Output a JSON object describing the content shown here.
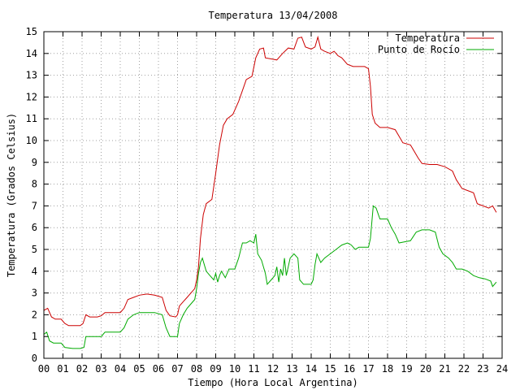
{
  "chart_data": {
    "type": "line",
    "title": "Temperatura 13/04/2008",
    "xlabel": "Tiempo (Hora Local Argentina)",
    "ylabel": "Temperatura (Grados Celsius)",
    "xlim": [
      0,
      24
    ],
    "ylim": [
      0,
      15
    ],
    "grid": true,
    "legend_position": "top-right",
    "x_ticks": [
      {
        "value": 0,
        "label": "00"
      },
      {
        "value": 1,
        "label": "01"
      },
      {
        "value": 2,
        "label": "02"
      },
      {
        "value": 3,
        "label": "03"
      },
      {
        "value": 4,
        "label": "04"
      },
      {
        "value": 5,
        "label": "05"
      },
      {
        "value": 6,
        "label": "06"
      },
      {
        "value": 7,
        "label": "07"
      },
      {
        "value": 8,
        "label": "08"
      },
      {
        "value": 9,
        "label": "09"
      },
      {
        "value": 10,
        "label": "10"
      },
      {
        "value": 11,
        "label": "11"
      },
      {
        "value": 12,
        "label": "12"
      },
      {
        "value": 13,
        "label": "13"
      },
      {
        "value": 14,
        "label": "14"
      },
      {
        "value": 15,
        "label": "15"
      },
      {
        "value": 16,
        "label": "16"
      },
      {
        "value": 17,
        "label": "17"
      },
      {
        "value": 18,
        "label": "18"
      },
      {
        "value": 19,
        "label": "19"
      },
      {
        "value": 20,
        "label": "20"
      },
      {
        "value": 21,
        "label": "21"
      },
      {
        "value": 22,
        "label": "22"
      },
      {
        "value": 23,
        "label": "23"
      },
      {
        "value": 24,
        "label": "24"
      }
    ],
    "y_ticks": [
      {
        "value": 0,
        "label": "0"
      },
      {
        "value": 1,
        "label": "1"
      },
      {
        "value": 2,
        "label": "2"
      },
      {
        "value": 3,
        "label": "3"
      },
      {
        "value": 4,
        "label": "4"
      },
      {
        "value": 5,
        "label": "5"
      },
      {
        "value": 6,
        "label": "6"
      },
      {
        "value": 7,
        "label": "7"
      },
      {
        "value": 8,
        "label": "8"
      },
      {
        "value": 9,
        "label": "9"
      },
      {
        "value": 10,
        "label": "10"
      },
      {
        "value": 11,
        "label": "11"
      },
      {
        "value": 12,
        "label": "12"
      },
      {
        "value": 13,
        "label": "13"
      },
      {
        "value": 14,
        "label": "14"
      },
      {
        "value": 15,
        "label": "15"
      }
    ],
    "series": [
      {
        "name": "Temperatura",
        "color": "#cc0000",
        "points": [
          [
            0.0,
            2.2
          ],
          [
            0.2,
            2.3
          ],
          [
            0.4,
            1.9
          ],
          [
            0.6,
            1.8
          ],
          [
            0.9,
            1.8
          ],
          [
            1.1,
            1.6
          ],
          [
            1.3,
            1.5
          ],
          [
            1.6,
            1.5
          ],
          [
            1.9,
            1.5
          ],
          [
            2.05,
            1.6
          ],
          [
            2.2,
            2.0
          ],
          [
            2.4,
            1.9
          ],
          [
            2.8,
            1.9
          ],
          [
            3.0,
            1.95
          ],
          [
            3.2,
            2.1
          ],
          [
            3.6,
            2.1
          ],
          [
            4.0,
            2.1
          ],
          [
            4.2,
            2.3
          ],
          [
            4.4,
            2.7
          ],
          [
            4.7,
            2.8
          ],
          [
            5.0,
            2.9
          ],
          [
            5.4,
            2.95
          ],
          [
            5.8,
            2.9
          ],
          [
            6.2,
            2.8
          ],
          [
            6.4,
            2.2
          ],
          [
            6.6,
            1.95
          ],
          [
            6.9,
            1.9
          ],
          [
            7.0,
            2.0
          ],
          [
            7.1,
            2.4
          ],
          [
            7.3,
            2.6
          ],
          [
            7.5,
            2.8
          ],
          [
            7.7,
            3.0
          ],
          [
            7.9,
            3.2
          ],
          [
            8.0,
            3.6
          ],
          [
            8.1,
            4.2
          ],
          [
            8.2,
            5.5
          ],
          [
            8.35,
            6.6
          ],
          [
            8.5,
            7.1
          ],
          [
            8.8,
            7.3
          ],
          [
            9.0,
            8.5
          ],
          [
            9.2,
            9.8
          ],
          [
            9.4,
            10.7
          ],
          [
            9.6,
            11.0
          ],
          [
            9.9,
            11.2
          ],
          [
            10.2,
            11.8
          ],
          [
            10.4,
            12.3
          ],
          [
            10.6,
            12.8
          ],
          [
            10.9,
            12.95
          ],
          [
            11.1,
            13.8
          ],
          [
            11.3,
            14.2
          ],
          [
            11.5,
            14.25
          ],
          [
            11.6,
            13.8
          ],
          [
            11.9,
            13.75
          ],
          [
            12.2,
            13.7
          ],
          [
            12.5,
            14.0
          ],
          [
            12.8,
            14.25
          ],
          [
            13.1,
            14.2
          ],
          [
            13.3,
            14.7
          ],
          [
            13.5,
            14.75
          ],
          [
            13.7,
            14.3
          ],
          [
            14.0,
            14.2
          ],
          [
            14.2,
            14.3
          ],
          [
            14.35,
            14.75
          ],
          [
            14.5,
            14.2
          ],
          [
            14.7,
            14.1
          ],
          [
            15.0,
            14.0
          ],
          [
            15.2,
            14.1
          ],
          [
            15.4,
            13.9
          ],
          [
            15.6,
            13.8
          ],
          [
            15.9,
            13.5
          ],
          [
            16.2,
            13.4
          ],
          [
            16.5,
            13.4
          ],
          [
            16.8,
            13.4
          ],
          [
            17.0,
            13.3
          ],
          [
            17.1,
            12.5
          ],
          [
            17.2,
            11.2
          ],
          [
            17.35,
            10.8
          ],
          [
            17.6,
            10.6
          ],
          [
            18.0,
            10.6
          ],
          [
            18.4,
            10.5
          ],
          [
            18.6,
            10.2
          ],
          [
            18.8,
            9.9
          ],
          [
            19.2,
            9.8
          ],
          [
            19.6,
            9.2
          ],
          [
            19.8,
            8.95
          ],
          [
            20.2,
            8.9
          ],
          [
            20.6,
            8.9
          ],
          [
            21.0,
            8.8
          ],
          [
            21.4,
            8.6
          ],
          [
            21.6,
            8.2
          ],
          [
            21.9,
            7.8
          ],
          [
            22.2,
            7.7
          ],
          [
            22.5,
            7.6
          ],
          [
            22.7,
            7.1
          ],
          [
            23.0,
            7.0
          ],
          [
            23.3,
            6.9
          ],
          [
            23.5,
            7.0
          ],
          [
            23.7,
            6.7
          ]
        ]
      },
      {
        "name": "Punto de Rocío",
        "color": "#00aa00",
        "points": [
          [
            0.0,
            1.1
          ],
          [
            0.15,
            1.2
          ],
          [
            0.3,
            0.8
          ],
          [
            0.5,
            0.7
          ],
          [
            0.9,
            0.7
          ],
          [
            1.1,
            0.5
          ],
          [
            1.5,
            0.45
          ],
          [
            1.9,
            0.45
          ],
          [
            2.1,
            0.5
          ],
          [
            2.2,
            1.0
          ],
          [
            2.6,
            1.0
          ],
          [
            3.0,
            1.0
          ],
          [
            3.2,
            1.2
          ],
          [
            3.6,
            1.2
          ],
          [
            4.0,
            1.2
          ],
          [
            4.2,
            1.4
          ],
          [
            4.4,
            1.8
          ],
          [
            4.7,
            2.0
          ],
          [
            5.0,
            2.1
          ],
          [
            5.4,
            2.1
          ],
          [
            5.8,
            2.1
          ],
          [
            6.2,
            2.0
          ],
          [
            6.4,
            1.4
          ],
          [
            6.6,
            1.0
          ],
          [
            7.0,
            1.0
          ],
          [
            7.1,
            1.6
          ],
          [
            7.3,
            2.0
          ],
          [
            7.5,
            2.3
          ],
          [
            7.7,
            2.5
          ],
          [
            7.9,
            2.7
          ],
          [
            8.0,
            3.2
          ],
          [
            8.1,
            3.9
          ],
          [
            8.2,
            4.4
          ],
          [
            8.3,
            4.6
          ],
          [
            8.5,
            4.0
          ],
          [
            8.7,
            3.8
          ],
          [
            8.9,
            3.6
          ],
          [
            9.0,
            3.9
          ],
          [
            9.1,
            3.5
          ],
          [
            9.2,
            3.8
          ],
          [
            9.3,
            4.0
          ],
          [
            9.5,
            3.7
          ],
          [
            9.7,
            4.1
          ],
          [
            10.0,
            4.1
          ],
          [
            10.2,
            4.6
          ],
          [
            10.4,
            5.3
          ],
          [
            10.6,
            5.3
          ],
          [
            10.8,
            5.4
          ],
          [
            11.0,
            5.3
          ],
          [
            11.1,
            5.7
          ],
          [
            11.2,
            4.8
          ],
          [
            11.4,
            4.5
          ],
          [
            11.6,
            3.9
          ],
          [
            11.7,
            3.4
          ],
          [
            11.9,
            3.6
          ],
          [
            12.1,
            3.8
          ],
          [
            12.2,
            4.2
          ],
          [
            12.3,
            3.5
          ],
          [
            12.4,
            4.1
          ],
          [
            12.5,
            3.8
          ],
          [
            12.6,
            4.6
          ],
          [
            12.7,
            3.8
          ],
          [
            12.9,
            4.6
          ],
          [
            13.1,
            4.8
          ],
          [
            13.3,
            4.6
          ],
          [
            13.4,
            3.6
          ],
          [
            13.6,
            3.4
          ],
          [
            13.8,
            3.4
          ],
          [
            14.0,
            3.4
          ],
          [
            14.1,
            3.6
          ],
          [
            14.2,
            4.3
          ],
          [
            14.3,
            4.8
          ],
          [
            14.5,
            4.4
          ],
          [
            14.7,
            4.6
          ],
          [
            15.0,
            4.8
          ],
          [
            15.3,
            5.0
          ],
          [
            15.6,
            5.2
          ],
          [
            15.9,
            5.3
          ],
          [
            16.1,
            5.2
          ],
          [
            16.3,
            5.0
          ],
          [
            16.5,
            5.1
          ],
          [
            16.7,
            5.1
          ],
          [
            17.0,
            5.1
          ],
          [
            17.1,
            5.5
          ],
          [
            17.25,
            7.0
          ],
          [
            17.4,
            6.9
          ],
          [
            17.6,
            6.4
          ],
          [
            18.0,
            6.4
          ],
          [
            18.2,
            6.0
          ],
          [
            18.4,
            5.7
          ],
          [
            18.6,
            5.3
          ],
          [
            18.9,
            5.35
          ],
          [
            19.2,
            5.4
          ],
          [
            19.5,
            5.8
          ],
          [
            19.8,
            5.9
          ],
          [
            20.2,
            5.9
          ],
          [
            20.5,
            5.8
          ],
          [
            20.7,
            5.1
          ],
          [
            20.9,
            4.8
          ],
          [
            21.2,
            4.6
          ],
          [
            21.4,
            4.4
          ],
          [
            21.6,
            4.1
          ],
          [
            21.9,
            4.1
          ],
          [
            22.2,
            4.0
          ],
          [
            22.5,
            3.8
          ],
          [
            22.8,
            3.7
          ],
          [
            23.1,
            3.65
          ],
          [
            23.4,
            3.55
          ],
          [
            23.5,
            3.3
          ],
          [
            23.6,
            3.4
          ],
          [
            23.7,
            3.5
          ]
        ]
      }
    ]
  }
}
